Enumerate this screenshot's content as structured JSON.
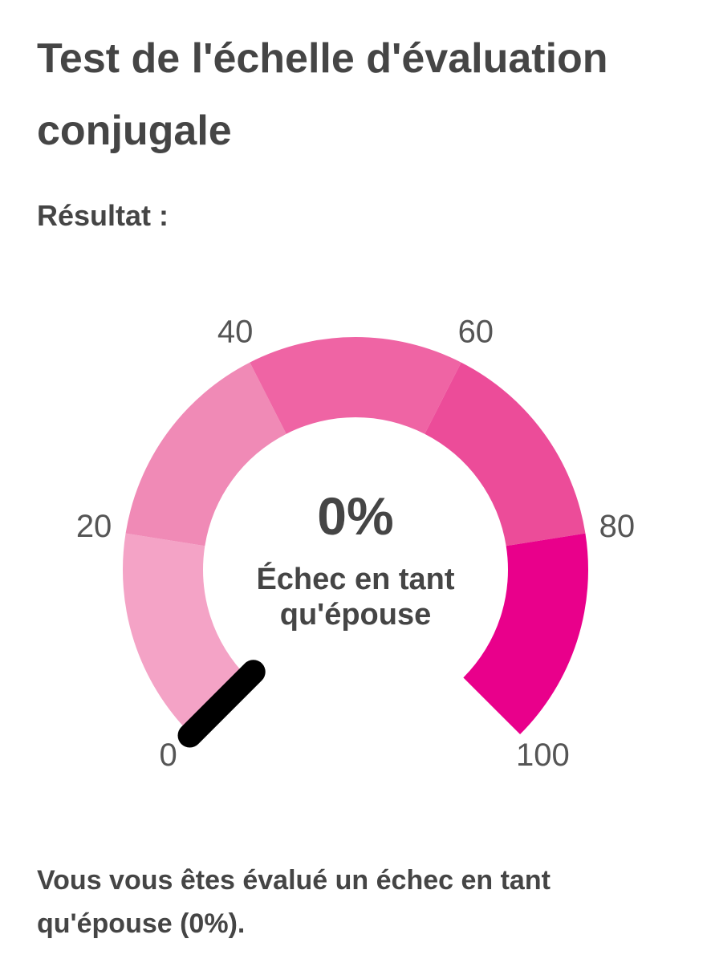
{
  "chart_data": {
    "type": "gauge",
    "title": "Test de l'échelle d'évaluation conjugale",
    "subtitle": "Résultat :",
    "value": 0,
    "value_label": "0%",
    "center_label": "Échec en tant qu'épouse",
    "ylim": [
      0,
      100
    ],
    "yticks": [
      0,
      20,
      40,
      60,
      80,
      100
    ],
    "band_colors": [
      "#f4a3c6",
      "#f08ab6",
      "#ef64a4",
      "#ec4c99",
      "#e9008b"
    ],
    "needle_color": "#000000",
    "footer": "Vous vous êtes évalué un échec en tant qu'épouse (0%)."
  }
}
